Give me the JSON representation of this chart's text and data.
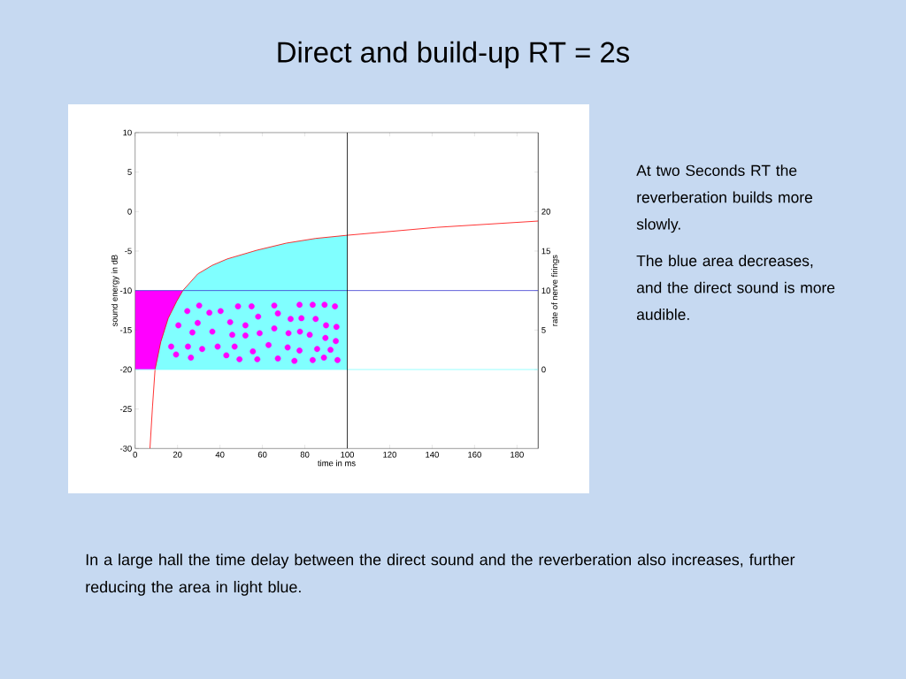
{
  "chart_data": {
    "type": "area",
    "title": "Direct and build-up RT = 2s",
    "xlabel": "time in ms",
    "ylabel": "sound energy in dB",
    "y2label": "rate of nerve firings",
    "xlim": [
      0,
      190
    ],
    "xticks": [
      0,
      20,
      40,
      60,
      80,
      100,
      120,
      140,
      160,
      180
    ],
    "ylim": [
      -30,
      10
    ],
    "yticks": [
      -30,
      -25,
      -20,
      -15,
      -10,
      -5,
      0,
      5,
      10
    ],
    "y2lim": [
      -10,
      30
    ],
    "y2ticks": [
      0,
      5,
      10,
      15,
      20,
      {
        "value": 25,
        "label": null
      }
    ],
    "series": [
      {
        "axis": "y2",
        "color": "#ff00ff",
        "x": [
          0,
          22.5
        ],
        "values": [
          10,
          10
        ]
      },
      {
        "axis": "y2",
        "color": "#80ffff",
        "x": [
          9.4,
          12.1,
          15.6,
          19.7,
          22.5,
          29.5,
          36.4,
          43.4,
          57.3,
          71.2,
          85.1,
          100
        ],
        "values": [
          0,
          3.5,
          6.5,
          8.7,
          10,
          12.1,
          13.2,
          14.0,
          15.1,
          16.0,
          16.6,
          17.0
        ]
      },
      {
        "type": "line",
        "color": "#ff0000",
        "x": [
          7.0,
          8.2,
          9.4,
          12.1,
          15.6,
          19.7,
          22.5,
          29.5,
          36.4,
          43.4,
          57.3,
          71.2,
          85.1,
          100,
          142,
          190
        ],
        "values": [
          -30,
          -24.7,
          -20,
          -16.5,
          -13.5,
          -11.3,
          -10,
          -7.9,
          -6.8,
          -6.0,
          -4.9,
          -4.0,
          -3.4,
          -3.0,
          -2.0,
          -1.2
        ]
      },
      {
        "type": "scatter",
        "color": "#ff00ff",
        "marker": "circle",
        "x": [
          24.6,
          30.2,
          35.0,
          40.3,
          48.5,
          54.9,
          65.6,
          77.5,
          83.7,
          89.3,
          94.2,
          20.4,
          29.5,
          44.8,
          52.0,
          58.0,
          67.3,
          73.3,
          78.4,
          85.1,
          90.0,
          94.9,
          27.0,
          36.4,
          45.8,
          52.0,
          58.7,
          65.6,
          72.3,
          77.7,
          82.3,
          89.7,
          94.6,
          17.0,
          19.3,
          24.9,
          26.3,
          31.6,
          38.9,
          43.0,
          46.9,
          49.2,
          55.5,
          57.6,
          62.9,
          67.3,
          71.9,
          75.1,
          77.5,
          83.7,
          85.8,
          89.0,
          92.1,
          95.4
        ],
        "values": [
          -12.6,
          -11.9,
          -12.8,
          -12.6,
          -12.0,
          -12.0,
          -11.9,
          -11.8,
          -11.8,
          -11.8,
          -12.0,
          -14.4,
          -14.1,
          -14.0,
          -14.4,
          -13.3,
          -12.9,
          -13.6,
          -13.5,
          -13.6,
          -14.4,
          -14.6,
          -15.3,
          -15.2,
          -15.6,
          -15.7,
          -15.4,
          -14.8,
          -15.4,
          -15.2,
          -15.6,
          -16.0,
          -16.4,
          -17.1,
          -18.1,
          -17.1,
          -18.5,
          -17.4,
          -17.1,
          -18.2,
          -17.1,
          -18.7,
          -17.7,
          -18.7,
          -16.9,
          -18.6,
          -17.2,
          -18.9,
          -17.6,
          -18.8,
          -17.4,
          -18.5,
          -17.5,
          -18.8
        ]
      }
    ],
    "ref_lines": [
      {
        "axis": "y",
        "value": -20,
        "color": "#80ffff"
      },
      {
        "axis": "y",
        "value": -10,
        "color": "#3a3ad0"
      },
      {
        "axis": "x",
        "value": 100,
        "color": "#000000"
      }
    ],
    "annotations": [
      "At two Seconds RT the reverberation builds more slowly.",
      "The blue area decreases, and the direct sound is more audible.",
      "In a large hall the time delay between the direct sound and the reverberation also increases, further reducing the area in light blue."
    ]
  }
}
